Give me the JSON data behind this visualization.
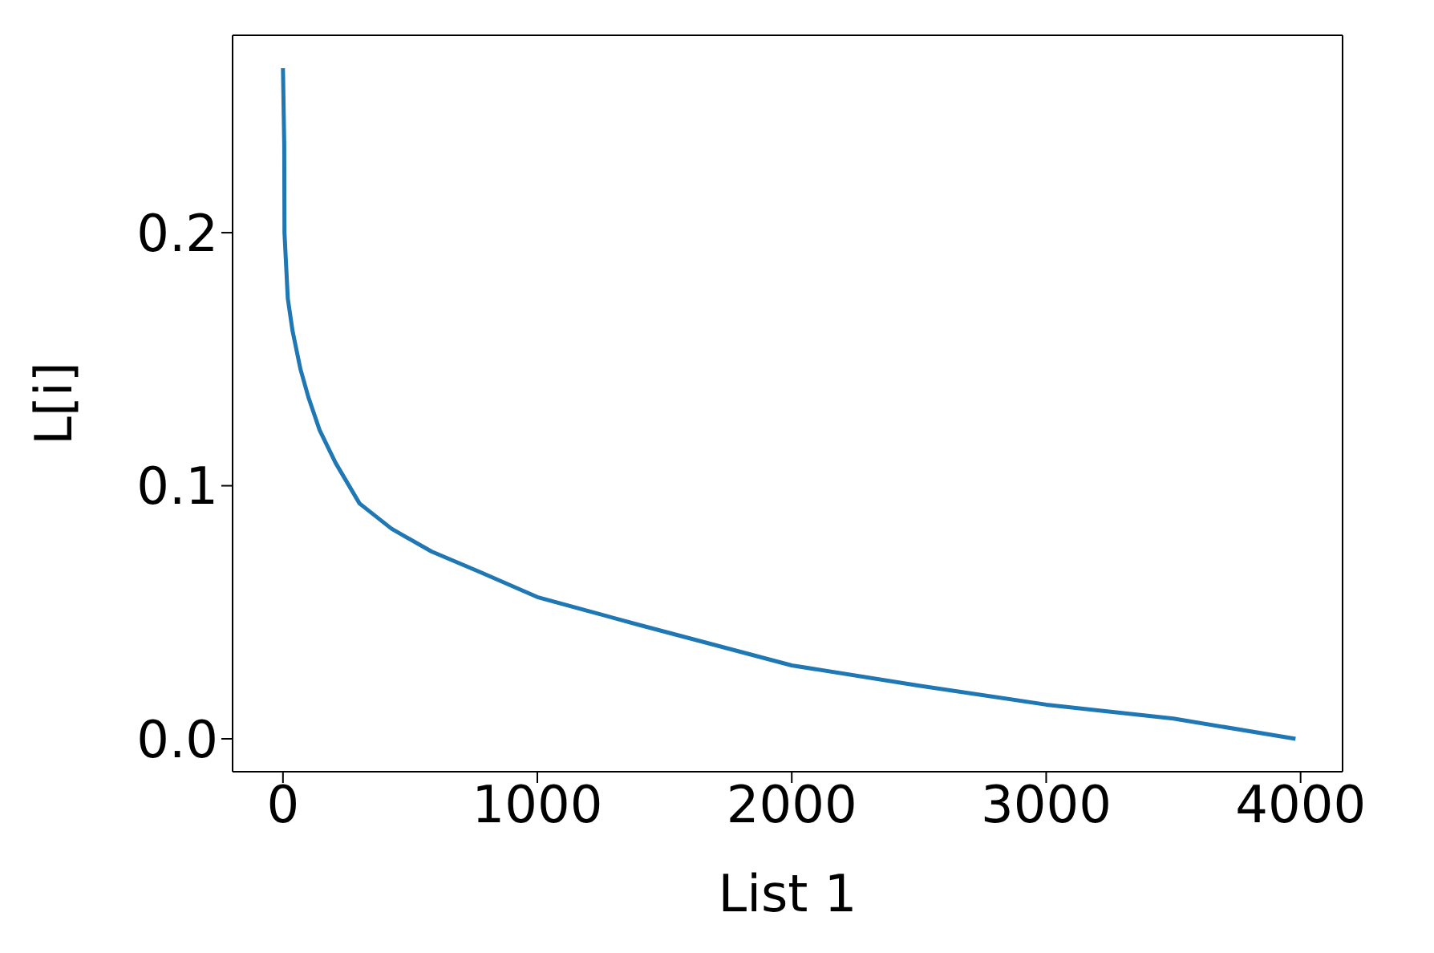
{
  "chart_data": {
    "type": "line",
    "xlabel": "List 1",
    "ylabel": "L[i]",
    "x": [
      0,
      5,
      6,
      19,
      38,
      69,
      100,
      144,
      207,
      301,
      427,
      584,
      772,
      1000,
      1400,
      2000,
      2500,
      3000,
      3500,
      3980
    ],
    "series": [
      {
        "color": "#1f77b4",
        "values": [
          0.265,
          0.235,
          0.2,
          0.174,
          0.161,
          0.146,
          0.135,
          0.122,
          0.109,
          0.093,
          0.083,
          0.074,
          0.066,
          0.056,
          0.045,
          0.029,
          0.021,
          0.0135,
          0.008,
          0.0
        ]
      }
    ],
    "xlim": [
      -198,
      4165
    ],
    "ylim": [
      -0.013,
      0.278
    ],
    "xticks": [
      0,
      1000,
      2000,
      3000,
      4000
    ],
    "yticks": [
      {
        "value": 0,
        "label": "0.0"
      },
      {
        "value": 0.1,
        "label": "0.1"
      },
      {
        "value": 0.2,
        "label": "0.2"
      }
    ],
    "grid": false,
    "legend": false,
    "marker": "none",
    "line_style": "solid"
  }
}
